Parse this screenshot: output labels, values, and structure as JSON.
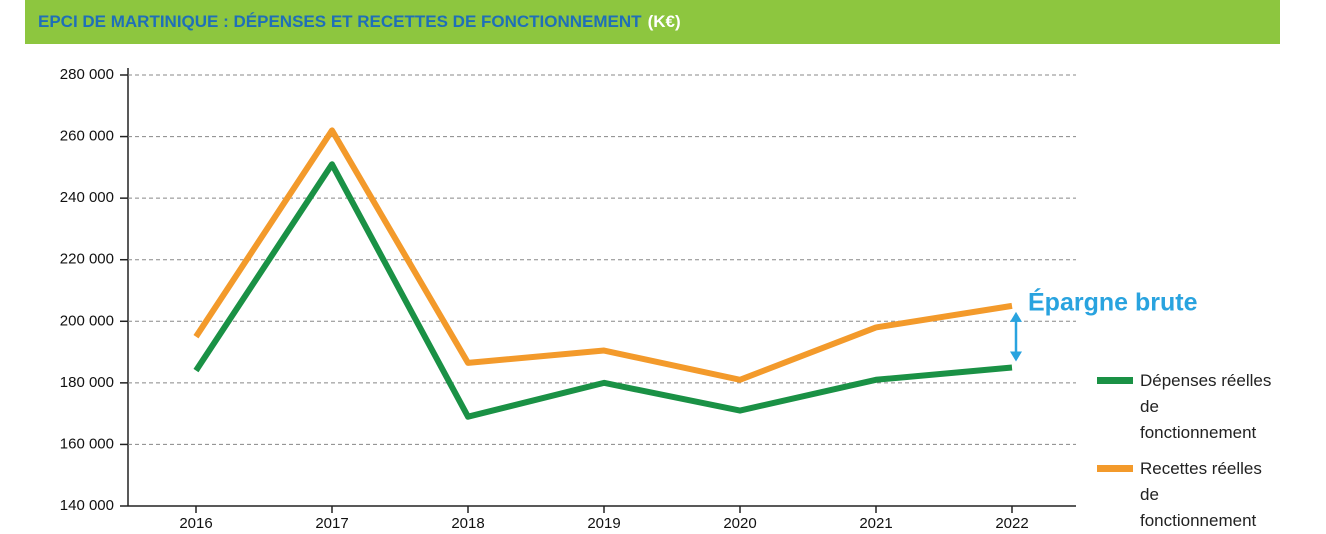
{
  "chart_data": {
    "type": "line",
    "title": "EPCI DE  MARTINIQUE : DÉPENSES ET RECETTES DE FONCTIONNEMENT",
    "title_unit": "(K€)",
    "annotation": "Épargne brute",
    "categories": [
      "2016",
      "2017",
      "2018",
      "2019",
      "2020",
      "2021",
      "2022"
    ],
    "series": [
      {
        "name": "Dépenses réelles de fonctionnement",
        "color": "#1a9145",
        "values": [
          184000,
          251000,
          169000,
          180000,
          171000,
          181000,
          185000
        ]
      },
      {
        "name": "Recettes réelles de fonctionnement",
        "color": "#f39a2b",
        "values": [
          195000,
          262000,
          186500,
          190500,
          181000,
          198000,
          205000
        ]
      }
    ],
    "ylim": [
      140000,
      280000
    ],
    "yticks": [
      {
        "value": 140000,
        "label": "140 000"
      },
      {
        "value": 160000,
        "label": "160 000"
      },
      {
        "value": 180000,
        "label": "180 000"
      },
      {
        "value": 200000,
        "label": "200 000"
      },
      {
        "value": 220000,
        "label": "220 000"
      },
      {
        "value": 240000,
        "label": "240 000"
      },
      {
        "value": 260000,
        "label": "260 000"
      },
      {
        "value": 280000,
        "label": "280 000"
      }
    ],
    "grid": true,
    "legend": "right"
  }
}
